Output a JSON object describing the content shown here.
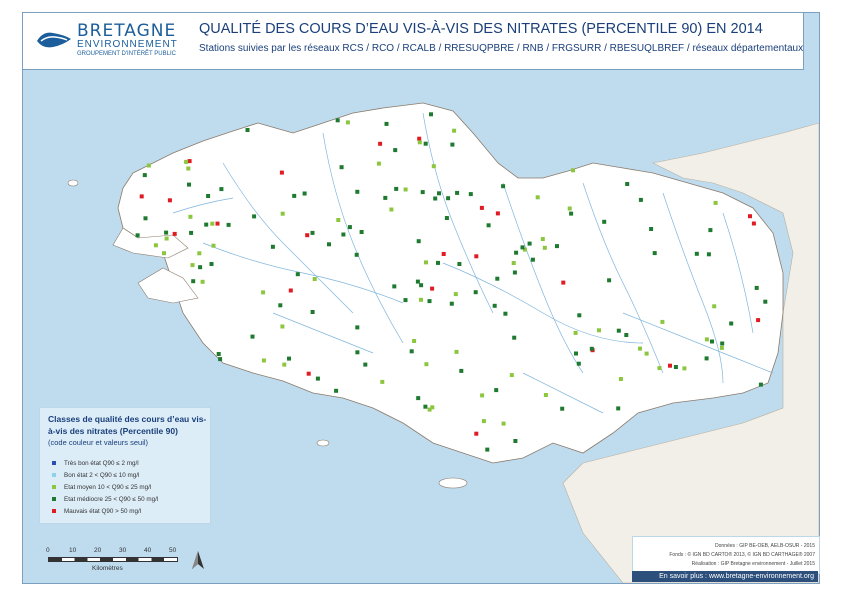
{
  "header": {
    "title": "QUALITÉ DES COURS D’EAU VIS-À-VIS DES NITRATES (PERCENTILE 90) EN 2014",
    "subtitle": "Stations suivies par les réseaux RCS / RCO / RCALB / RRESUQPBRE / RNB / FRGSURR / RBESUQLBREF / réseaux départementaux"
  },
  "logo": {
    "brand": "BRETAGNE",
    "brand_sub": "ENVIRONNEMENT",
    "brand_tag": "GROUPEMENT D'INTÉRÊT PUBLIC"
  },
  "legend": {
    "title": "Classes de qualité des cours d’eau vis-à-vis des nitrates (Percentile 90)",
    "subtitle": "(code couleur et valeurs seuil)",
    "classes": [
      {
        "label": "Très bon état  Q90 ≤ 2 mg/l",
        "color": "#2a4fb5"
      },
      {
        "label": "Bon état  2 < Q90 ≤ 10 mg/l",
        "color": "#8fd0ee"
      },
      {
        "label": "Etat moyen  10 < Q90 ≤ 25 mg/l",
        "color": "#8cc63f"
      },
      {
        "label": "Etat médiocre  25 < Q90 ≤ 50 mg/l",
        "color": "#1e7a2e"
      },
      {
        "label": "Mauvais état  Q90 > 50 mg/l",
        "color": "#e01b24"
      }
    ]
  },
  "scale": {
    "ticks": [
      "0",
      "10",
      "20",
      "30",
      "40",
      "50"
    ],
    "unit": "Kilomètres"
  },
  "credits": {
    "line1": "Données : GIP BE-OEB, AELB-OSUR - 2015",
    "line2": "Fonds : © IGN BD CARTO® 2013, © IGN BD CARTHAGE® 2007",
    "line3": "Réalisation : GIP Bretagne environnement - Juillet 2015",
    "footer": "En savoir plus : www.bretagne-environnement.org"
  },
  "colors": {
    "sea": "#bfdcef",
    "land": "#ffffff",
    "neighbor_land": "#f2efe8",
    "river": "#7fb5dc",
    "frame": "#7a9fbf"
  }
}
